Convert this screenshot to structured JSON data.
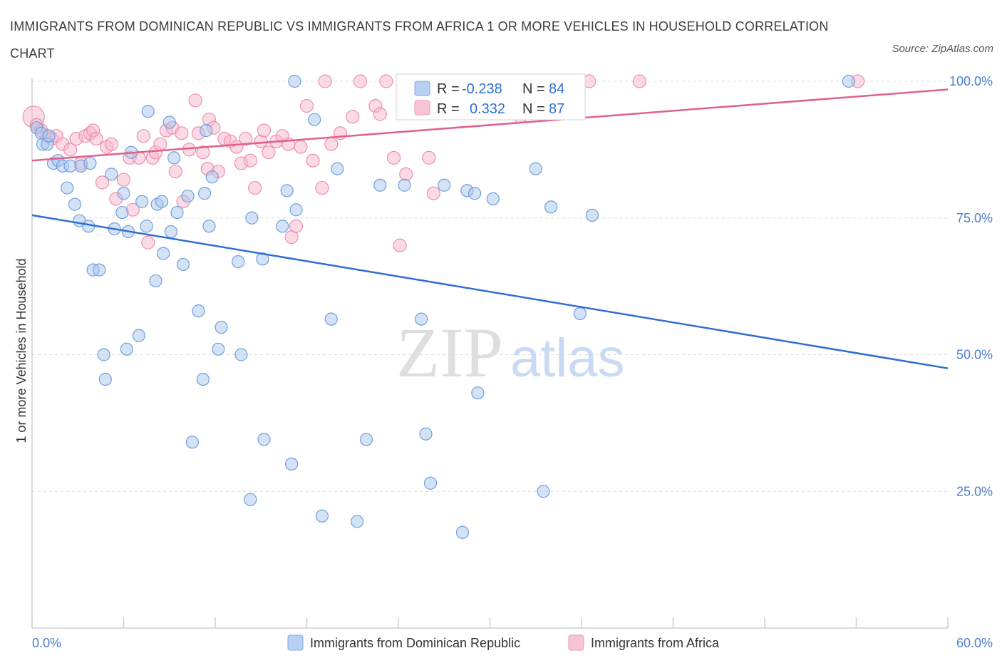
{
  "title": "IMMIGRANTS FROM DOMINICAN REPUBLIC VS IMMIGRANTS FROM AFRICA 1 OR MORE VEHICLES IN HOUSEHOLD CORRELATION CHART",
  "source": "Source: ZipAtlas.com",
  "watermark": {
    "zip": "ZIP",
    "atlas": "atlas"
  },
  "colors": {
    "blue_fill": "#a9c6ee",
    "blue_stroke": "#6f9fe0",
    "blue_line": "#2f6fd1",
    "pink_fill": "#f6b6cb",
    "pink_stroke": "#ee8fae",
    "pink_line": "#e0608d",
    "grid": "#dcdcdc",
    "tick_text": "#4a7fd0"
  },
  "stats": {
    "blue": {
      "r_label": "R =",
      "r_value": "-0.238",
      "n_label": "N =",
      "n_value": "84"
    },
    "pink": {
      "r_label": "R =",
      "r_value": "0.332",
      "n_label": "N =",
      "n_value": "87"
    }
  },
  "legend": {
    "blue": "Immigrants from Dominican Republic",
    "pink": "Immigrants from Africa"
  },
  "chart_data": {
    "type": "scatter",
    "title": "IMMIGRANTS FROM DOMINICAN REPUBLIC VS IMMIGRANTS FROM AFRICA 1 OR MORE VEHICLES IN HOUSEHOLD CORRELATION CHART",
    "xlabel": "",
    "ylabel": "1 or more Vehicles in Household",
    "xlim": [
      0,
      60
    ],
    "ylim": [
      0,
      105
    ],
    "x_tick_labels": [
      {
        "value": 0,
        "label": "0.0%"
      },
      {
        "value": 60,
        "label": "60.0%"
      }
    ],
    "y_tick_labels": [
      {
        "value": 25,
        "label": "25.0%"
      },
      {
        "value": 50,
        "label": "50.0%"
      },
      {
        "value": 75,
        "label": "75.0%"
      },
      {
        "value": 100,
        "label": "100.0%"
      }
    ],
    "grid": true,
    "legend_position": "bottom",
    "series": [
      {
        "name": "Immigrants from Dominican Republic",
        "color": "#a9c6ee",
        "trend": {
          "x": [
            0,
            60
          ],
          "y": [
            75.5,
            47.5
          ]
        },
        "points": [
          [
            0.3,
            91.5
          ],
          [
            0.6,
            90.5
          ],
          [
            0.7,
            88.5
          ],
          [
            1.0,
            88.5
          ],
          [
            1.1,
            90.0
          ],
          [
            1.4,
            85.0
          ],
          [
            1.7,
            85.5
          ],
          [
            2.0,
            84.5
          ],
          [
            2.5,
            84.5
          ],
          [
            3.2,
            84.5
          ],
          [
            3.8,
            85.0
          ],
          [
            2.3,
            80.5
          ],
          [
            2.8,
            77.5
          ],
          [
            3.1,
            74.5
          ],
          [
            3.7,
            73.5
          ],
          [
            4.0,
            65.5
          ],
          [
            4.4,
            65.5
          ],
          [
            5.2,
            83.0
          ],
          [
            5.9,
            76.0
          ],
          [
            5.4,
            73.0
          ],
          [
            6.0,
            79.5
          ],
          [
            6.3,
            72.5
          ],
          [
            6.5,
            87.0
          ],
          [
            7.2,
            78.0
          ],
          [
            7.5,
            73.5
          ],
          [
            7.6,
            94.5
          ],
          [
            8.2,
            77.5
          ],
          [
            8.5,
            78.0
          ],
          [
            8.6,
            68.5
          ],
          [
            8.1,
            63.5
          ],
          [
            9.1,
            72.5
          ],
          [
            9.3,
            86.0
          ],
          [
            9.0,
            92.5
          ],
          [
            9.5,
            76.0
          ],
          [
            9.9,
            66.5
          ],
          [
            10.2,
            79.0
          ],
          [
            11.3,
            79.5
          ],
          [
            11.6,
            73.5
          ],
          [
            11.4,
            91.0
          ],
          [
            11.8,
            82.5
          ],
          [
            13.5,
            67.0
          ],
          [
            14.4,
            75.0
          ],
          [
            15.1,
            67.5
          ],
          [
            16.4,
            73.5
          ],
          [
            16.7,
            80.0
          ],
          [
            17.3,
            76.5
          ],
          [
            17.2,
            100.0
          ],
          [
            18.5,
            93.0
          ],
          [
            20.0,
            84.0
          ],
          [
            22.8,
            81.0
          ],
          [
            24.4,
            81.0
          ],
          [
            25.0,
            95.0
          ],
          [
            27.0,
            81.0
          ],
          [
            28.5,
            80.0
          ],
          [
            29.0,
            79.5
          ],
          [
            30.2,
            78.5
          ],
          [
            33.0,
            84.0
          ],
          [
            34.0,
            77.0
          ],
          [
            36.7,
            75.5
          ],
          [
            53.5,
            100.0
          ],
          [
            10.9,
            58.0
          ],
          [
            12.4,
            55.0
          ],
          [
            12.2,
            51.0
          ],
          [
            13.7,
            50.0
          ],
          [
            7.0,
            53.5
          ],
          [
            6.2,
            51.0
          ],
          [
            4.7,
            50.0
          ],
          [
            4.8,
            45.5
          ],
          [
            11.2,
            45.5
          ],
          [
            19.6,
            56.5
          ],
          [
            25.5,
            56.5
          ],
          [
            35.9,
            57.5
          ],
          [
            29.2,
            43.0
          ],
          [
            10.5,
            34.0
          ],
          [
            15.2,
            34.5
          ],
          [
            21.9,
            34.5
          ],
          [
            25.8,
            35.5
          ],
          [
            17.0,
            30.0
          ],
          [
            26.1,
            26.5
          ],
          [
            33.5,
            25.0
          ],
          [
            14.3,
            23.5
          ],
          [
            19.0,
            20.5
          ],
          [
            21.3,
            19.5
          ],
          [
            28.2,
            17.5
          ]
        ]
      },
      {
        "name": "Immigrants from Africa",
        "color": "#f6b6cb",
        "trend": {
          "x": [
            0,
            60
          ],
          "y": [
            85.5,
            98.5
          ]
        },
        "points": [
          [
            0.1,
            93.5
          ],
          [
            0.3,
            92.0
          ],
          [
            0.6,
            91.0
          ],
          [
            1.0,
            90.0
          ],
          [
            1.3,
            89.5
          ],
          [
            1.6,
            90.0
          ],
          [
            2.0,
            88.5
          ],
          [
            2.5,
            87.5
          ],
          [
            2.9,
            89.5
          ],
          [
            3.2,
            85.0
          ],
          [
            3.5,
            90.0
          ],
          [
            3.8,
            90.5
          ],
          [
            4.0,
            91.0
          ],
          [
            4.2,
            89.5
          ],
          [
            4.9,
            88.0
          ],
          [
            5.2,
            88.5
          ],
          [
            4.6,
            81.5
          ],
          [
            5.5,
            78.5
          ],
          [
            6.0,
            82.0
          ],
          [
            6.4,
            86.0
          ],
          [
            6.6,
            76.5
          ],
          [
            7.0,
            86.0
          ],
          [
            7.3,
            90.0
          ],
          [
            7.6,
            70.5
          ],
          [
            7.9,
            86.0
          ],
          [
            8.1,
            87.0
          ],
          [
            8.4,
            88.5
          ],
          [
            8.8,
            91.0
          ],
          [
            9.2,
            91.5
          ],
          [
            9.4,
            83.5
          ],
          [
            9.8,
            90.5
          ],
          [
            9.9,
            78.0
          ],
          [
            10.3,
            87.5
          ],
          [
            10.7,
            96.5
          ],
          [
            10.9,
            90.5
          ],
          [
            11.2,
            87.0
          ],
          [
            11.5,
            84.0
          ],
          [
            11.6,
            93.0
          ],
          [
            11.9,
            91.5
          ],
          [
            12.2,
            83.5
          ],
          [
            12.6,
            89.5
          ],
          [
            13.0,
            89.0
          ],
          [
            13.4,
            88.0
          ],
          [
            13.7,
            85.0
          ],
          [
            14.0,
            89.5
          ],
          [
            14.3,
            85.5
          ],
          [
            14.6,
            80.5
          ],
          [
            15.0,
            89.0
          ],
          [
            15.2,
            91.0
          ],
          [
            15.5,
            87.0
          ],
          [
            16.0,
            89.0
          ],
          [
            16.4,
            90.0
          ],
          [
            16.8,
            88.5
          ],
          [
            17.0,
            71.5
          ],
          [
            17.3,
            73.5
          ],
          [
            17.6,
            88.0
          ],
          [
            18.0,
            95.5
          ],
          [
            18.4,
            85.5
          ],
          [
            19.2,
            100.0
          ],
          [
            19.0,
            80.5
          ],
          [
            19.6,
            88.5
          ],
          [
            20.2,
            90.5
          ],
          [
            21.0,
            93.5
          ],
          [
            21.5,
            100.0
          ],
          [
            22.5,
            95.5
          ],
          [
            22.8,
            94.0
          ],
          [
            23.2,
            100.0
          ],
          [
            23.7,
            86.0
          ],
          [
            24.1,
            70.0
          ],
          [
            24.5,
            83.0
          ],
          [
            25.0,
            95.5
          ],
          [
            25.3,
            96.0
          ],
          [
            26.0,
            86.0
          ],
          [
            26.3,
            79.5
          ],
          [
            26.8,
            99.0
          ],
          [
            27.5,
            100.0
          ],
          [
            28.3,
            96.0
          ],
          [
            29.0,
            98.0
          ],
          [
            30.0,
            100.0
          ],
          [
            31.0,
            98.0
          ],
          [
            32.0,
            93.5
          ],
          [
            33.0,
            96.5
          ],
          [
            34.0,
            100.0
          ],
          [
            35.0,
            98.5
          ],
          [
            36.5,
            100.0
          ],
          [
            39.8,
            100.0
          ],
          [
            54.1,
            100.0
          ]
        ]
      }
    ]
  }
}
